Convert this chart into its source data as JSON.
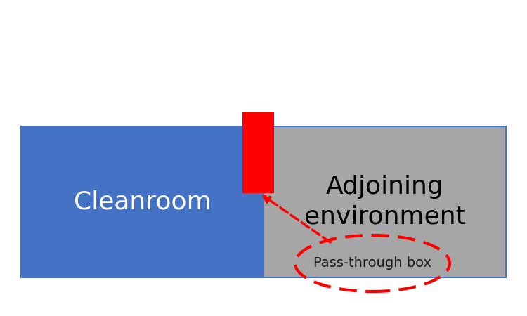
{
  "fig_width": 7.5,
  "fig_height": 4.5,
  "fig_dpi": 100,
  "bg_color": "#ffffff",
  "cleanroom_color": "#4472c4",
  "adjoining_color": "#a6a6a6",
  "border_color": "#4472c4",
  "border_linewidth": 1.5,
  "cleanroom_label": "Cleanroom",
  "cleanroom_label_color": "#ffffff",
  "cleanroom_label_fontsize": 26,
  "adjoining_label_line1": "Adjoining",
  "adjoining_label_line2": "environment",
  "adjoining_label_color": "#000000",
  "adjoining_label_fontsize": 26,
  "ptb_color": "#ff0000",
  "arrow_color": "#ff0000",
  "arrow_linewidth": 2.5,
  "ellipse_edgecolor": "#ff0000",
  "ellipse_linewidth": 3.0,
  "ptb_label": "Pass-through box",
  "ptb_label_fontsize": 14,
  "ptb_label_color": "#1a1a1a"
}
